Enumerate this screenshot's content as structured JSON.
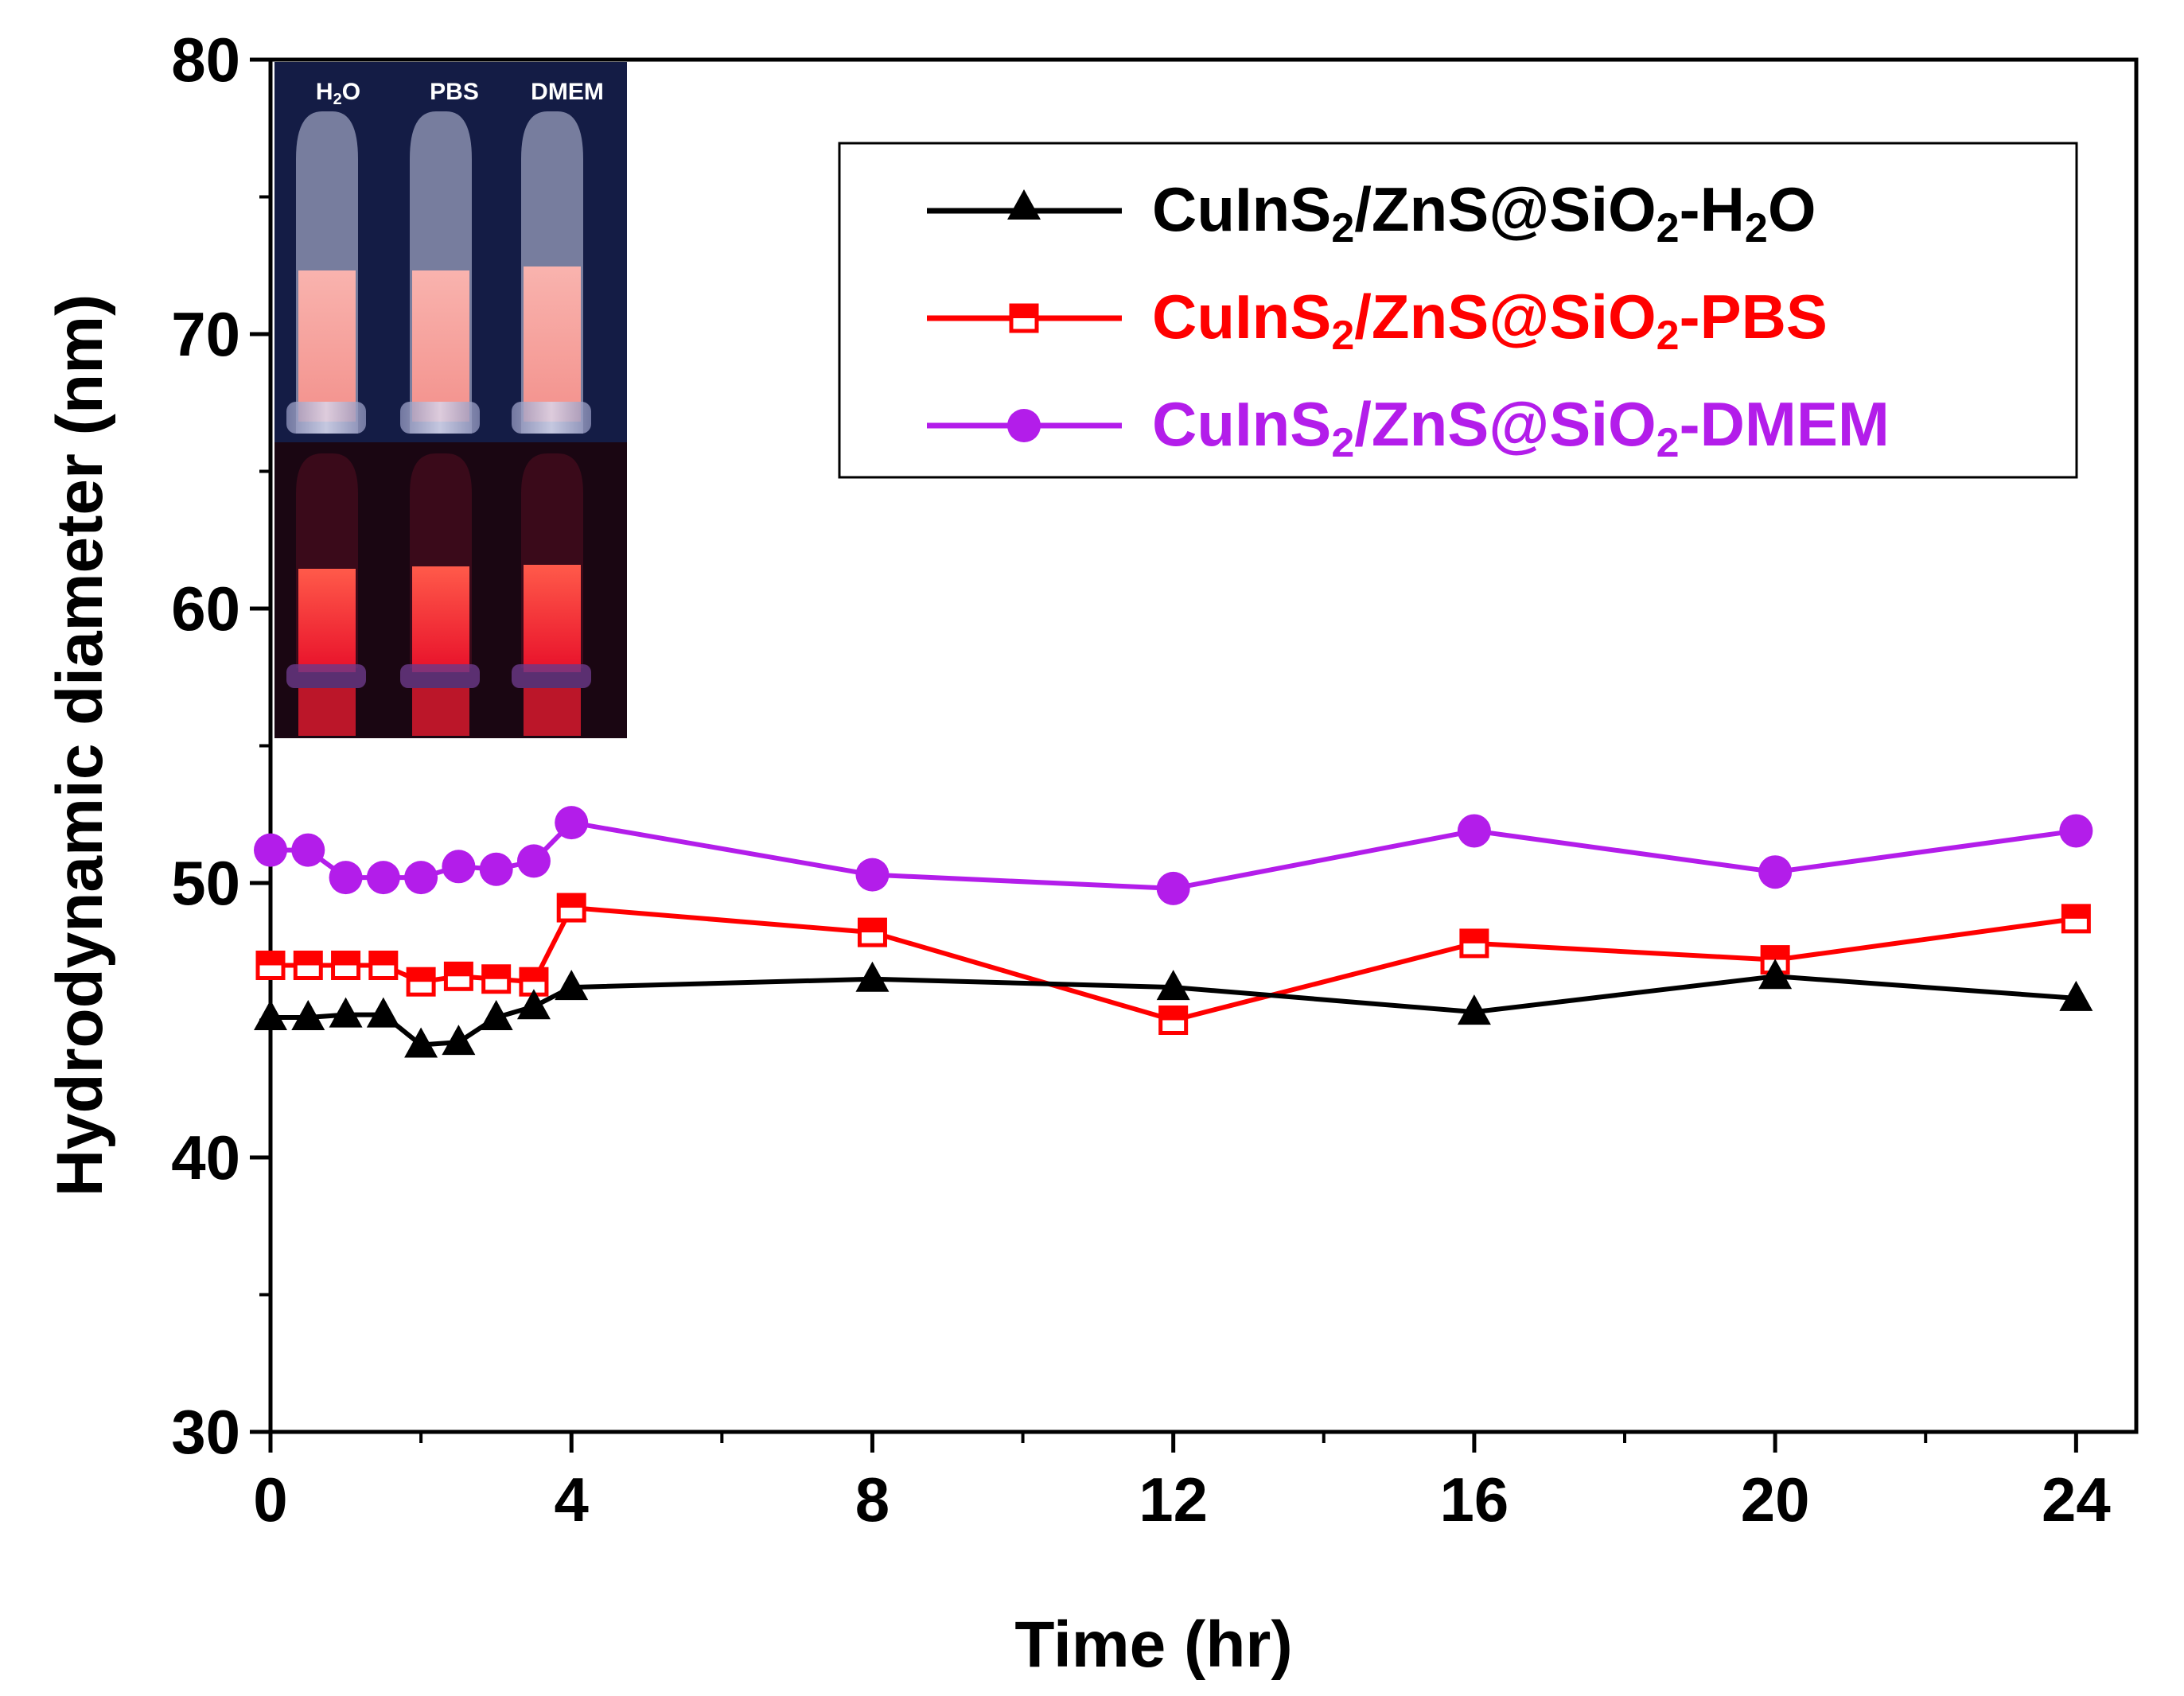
{
  "chart_data": {
    "type": "line",
    "title": "",
    "xlabel": "Time (hr)",
    "ylabel": "Hydrodynamic diameter (nm)",
    "xlim": [
      0,
      24.8
    ],
    "ylim": [
      30,
      80
    ],
    "xticks": [
      0,
      4,
      8,
      12,
      16,
      20,
      24
    ],
    "xtick_labels": [
      "0",
      "4",
      "8",
      "12",
      "16",
      "20",
      "24"
    ],
    "yticks": [
      30,
      40,
      50,
      60,
      70,
      80
    ],
    "ytick_labels": [
      "30",
      "40",
      "50",
      "60",
      "70",
      "80"
    ],
    "legend_position": "top-right",
    "series": [
      {
        "name": "CuInS2/ZnS@SiO2-H2O",
        "legend": {
          "base": "CuInS",
          "sub1": "2",
          "mid": "/ZnS@SiO",
          "sub2": "2",
          "tail1": "-H",
          "sub3": "2",
          "tail2": "O"
        },
        "color": "#000000",
        "marker": "triangle",
        "x": [
          0,
          0.5,
          1,
          1.5,
          2,
          2.5,
          3,
          3.5,
          4,
          8,
          12,
          16,
          20,
          24
        ],
        "y": [
          45.1,
          45.1,
          45.2,
          45.2,
          44.1,
          44.2,
          45.1,
          45.5,
          46.2,
          46.5,
          46.2,
          45.3,
          46.6,
          45.8
        ]
      },
      {
        "name": "CuInS2/ZnS@SiO2-PBS",
        "legend": {
          "base": "CuInS",
          "sub1": "2",
          "mid": "/ZnS@SiO",
          "sub2": "2",
          "tail1": "-PBS"
        },
        "color": "#ff0000",
        "marker": "half-square",
        "x": [
          0,
          0.5,
          1,
          1.5,
          2,
          2.5,
          3,
          3.5,
          4,
          8,
          12,
          16,
          20,
          24
        ],
        "y": [
          47.0,
          47.0,
          47.0,
          47.0,
          46.4,
          46.6,
          46.5,
          46.4,
          49.1,
          48.2,
          45.0,
          47.8,
          47.2,
          48.7
        ]
      },
      {
        "name": "CuInS2/ZnS@SiO2-DMEM",
        "legend": {
          "base": "CuInS",
          "sub1": "2",
          "mid": "/ZnS@SiO",
          "sub2": "2",
          "tail1": "-DMEM"
        },
        "color": "#b31dea",
        "marker": "circle",
        "x": [
          0,
          0.5,
          1,
          1.5,
          2,
          2.5,
          3,
          3.5,
          4,
          8,
          12,
          16,
          20,
          24
        ],
        "y": [
          51.2,
          51.2,
          50.2,
          50.2,
          50.2,
          50.6,
          50.5,
          50.8,
          52.2,
          50.3,
          49.8,
          51.9,
          50.4,
          51.9
        ]
      }
    ]
  },
  "inset": {
    "labels": [
      "H2O",
      "PBS",
      "DMEM"
    ],
    "label_parts": [
      {
        "base": "H",
        "sub": "2",
        "tail": "O"
      },
      {
        "base": "PBS",
        "sub": "",
        "tail": ""
      },
      {
        "base": "DMEM",
        "sub": "",
        "tail": ""
      }
    ]
  },
  "colors": {
    "h2o": "#000000",
    "pbs": "#ff0000",
    "dmem": "#b31dea",
    "tube_glow": "#ff2a2a",
    "tube_daylight": "#f7a8a6"
  }
}
